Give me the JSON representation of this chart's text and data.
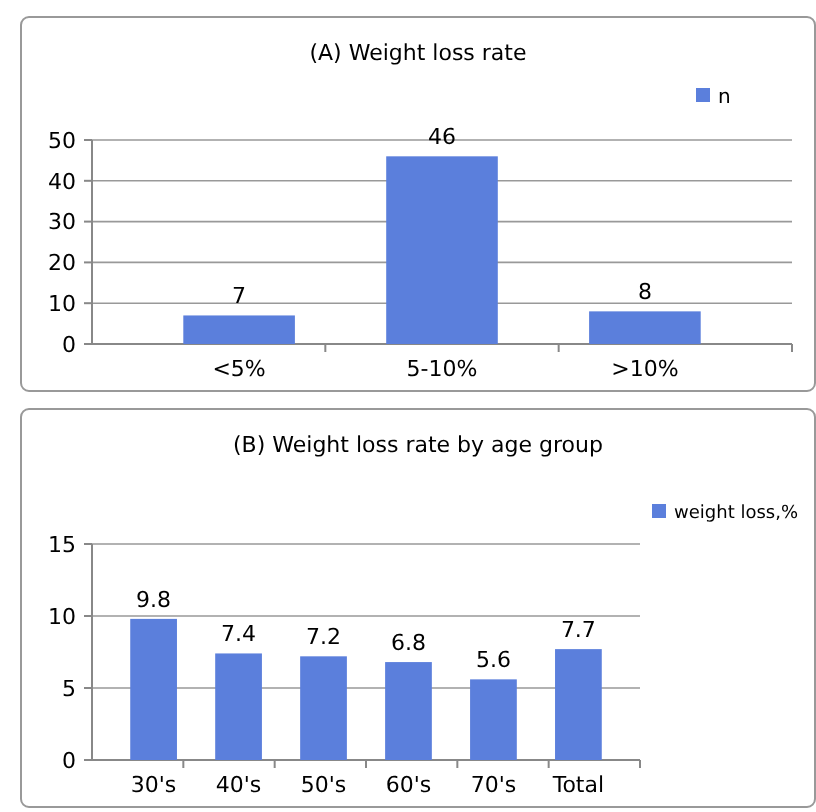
{
  "chart_data": [
    {
      "type": "bar",
      "title": "(A) Weight loss rate",
      "categories": [
        "<5%",
        "5-10%",
        ">10%"
      ],
      "series": [
        {
          "name": "n",
          "color": "#5b7fdc",
          "values": [
            7,
            46,
            8
          ]
        }
      ],
      "ylim": [
        0,
        50
      ],
      "yticks": [
        0,
        10,
        20,
        30,
        40,
        50
      ],
      "grid": "y",
      "legend": "top right",
      "data_labels": true
    },
    {
      "type": "bar",
      "title": "(B) Weight loss rate by age group",
      "categories": [
        "30's",
        "40's",
        "50's",
        "60's",
        "70's",
        "Total"
      ],
      "series": [
        {
          "name": "weight loss,%",
          "color": "#5b7fdc",
          "values": [
            9.8,
            7.4,
            7.2,
            6.8,
            5.6,
            7.7
          ]
        }
      ],
      "ylim": [
        0,
        15
      ],
      "yticks": [
        0,
        5,
        10,
        15
      ],
      "grid": "y",
      "legend": "right",
      "data_labels": true
    }
  ]
}
